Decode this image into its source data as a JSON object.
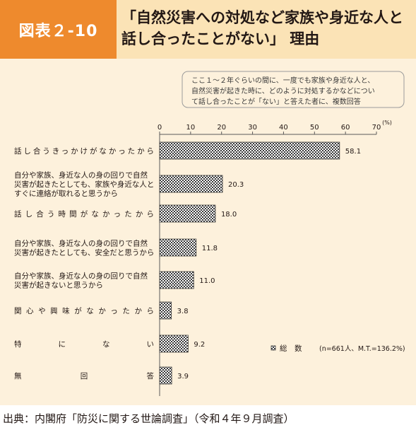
{
  "figure": {
    "badge": "図表２-10",
    "title_line1": "「自然災害への対処など家族や身近な人と",
    "title_line2": "話し合ったことがない」 理由",
    "note_lines": [
      "ここ１～２年ぐらいの間に、一度でも家族や身近な人と、",
      "自然災害が起きた時に、どのように対処するかなどについ",
      "て話し合ったことが「ない」と答えた者に、複数回答"
    ],
    "source": "出典：内閣府「防災に関する世論調査」（令和４年９月調査）"
  },
  "chart_data": {
    "type": "bar",
    "orientation": "horizontal",
    "categories": [
      [
        "話し合うきっかけがなかったから"
      ],
      [
        "自分や家族、身近な人の身の回りで自然",
        "災害が起きたとしても、家族や身近な人と",
        "すぐに連絡が取れると思うから"
      ],
      [
        "話し合う時間がなかったから"
      ],
      [
        "自分や家族、身近な人の身の回りで自然",
        "災害が起きたとしても、安全だと思うから"
      ],
      [
        "自分や家族、身近な人の身の回りで自然",
        "災害が起きないと思うから"
      ],
      [
        "関心や興味がなかったから"
      ],
      [
        "特にない"
      ],
      [
        "無回答"
      ]
    ],
    "values": [
      58.1,
      20.3,
      18.0,
      11.8,
      11.0,
      3.8,
      9.2,
      3.9
    ],
    "value_labels": [
      "58.1",
      "20.3",
      "18.0",
      "11.8",
      "11.0",
      "3.8",
      "9.2",
      "3.9"
    ],
    "xlim": [
      0,
      70
    ],
    "ticks": [
      "0",
      "10",
      "20",
      "30",
      "40",
      "50",
      "60",
      "70"
    ],
    "unit": "(%)",
    "legend": {
      "name": "総　数",
      "note": "(n=661人、M.T.=136.2%)",
      "position": "bottom-right"
    }
  }
}
